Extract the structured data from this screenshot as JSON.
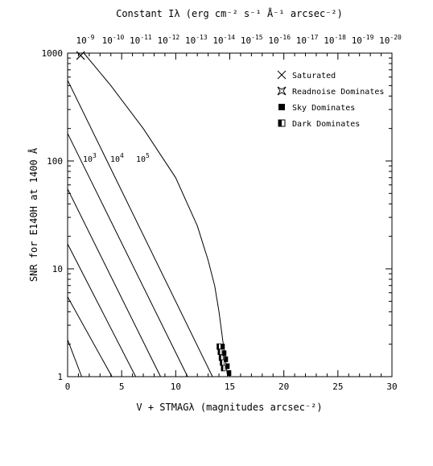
{
  "chart_data": {
    "type": "line",
    "title": "",
    "xlabel": "V + STMAGλ (magnitudes arcsec⁻²)",
    "ylabel": "SNR for E140H at 1400 Å",
    "top_xlabel": "Constant Iλ (erg cm⁻² s⁻¹ Å⁻¹ arcsec⁻²)",
    "xlim": [
      0,
      30
    ],
    "ylim": [
      1,
      1000
    ],
    "yscale": "log",
    "x_ticks": [
      "0",
      "5",
      "10",
      "15",
      "20",
      "25",
      "30"
    ],
    "y_ticks": [
      "1",
      "10",
      "100",
      "1000"
    ],
    "top_ticks": [
      "10^-9",
      "10^-10",
      "10^-11",
      "10^-12",
      "10^-13",
      "10^-14",
      "10^-15",
      "10^-16",
      "10^-17",
      "10^-18",
      "10^-19",
      "10^-20"
    ],
    "legend": {
      "position": "top-right",
      "items": [
        {
          "label": "Saturated",
          "marker": "cross"
        },
        {
          "label": "Readnoise Dominates",
          "marker": "star"
        },
        {
          "label": "Sky Dominates",
          "marker": "filled-square"
        },
        {
          "label": "Dark Dominates",
          "marker": "half-square"
        }
      ]
    },
    "curve_labels": [
      "10^3",
      "10^4",
      "10^5"
    ],
    "series": [
      {
        "x": [
          0,
          1.3
        ],
        "y": [
          2.2,
          1
        ]
      },
      {
        "x": [
          0,
          4.1
        ],
        "y": [
          5.5,
          1
        ]
      },
      {
        "x": [
          0,
          6.3
        ],
        "y": [
          17,
          1
        ]
      },
      {
        "x": [
          0,
          8.6
        ],
        "y": [
          55,
          1
        ]
      },
      {
        "x": [
          0,
          11.1
        ],
        "y": [
          180,
          1
        ]
      },
      {
        "x": [
          0,
          13.4
        ],
        "y": [
          560,
          1
        ]
      },
      {
        "x": [
          1.5,
          4,
          7,
          10,
          12,
          13,
          13.6,
          14,
          14.4,
          14.8
        ],
        "y": [
          1000,
          500,
          200,
          70,
          25,
          12,
          7,
          4,
          2,
          1
        ]
      }
    ],
    "markers": [
      {
        "type": "saturated",
        "x": 1.2,
        "y": 950
      },
      {
        "type": "dark",
        "x": 14.0,
        "y": 1.9
      },
      {
        "type": "dark",
        "x": 14.1,
        "y": 1.7
      },
      {
        "type": "dark",
        "x": 14.2,
        "y": 1.5
      },
      {
        "type": "dark",
        "x": 14.3,
        "y": 1.35
      },
      {
        "type": "dark",
        "x": 14.4,
        "y": 1.2
      },
      {
        "type": "sky",
        "x": 14.35,
        "y": 1.9
      },
      {
        "type": "sky",
        "x": 14.5,
        "y": 1.65
      },
      {
        "type": "sky",
        "x": 14.65,
        "y": 1.45
      },
      {
        "type": "sky",
        "x": 14.8,
        "y": 1.25
      },
      {
        "type": "sky",
        "x": 14.95,
        "y": 1.08
      }
    ]
  }
}
